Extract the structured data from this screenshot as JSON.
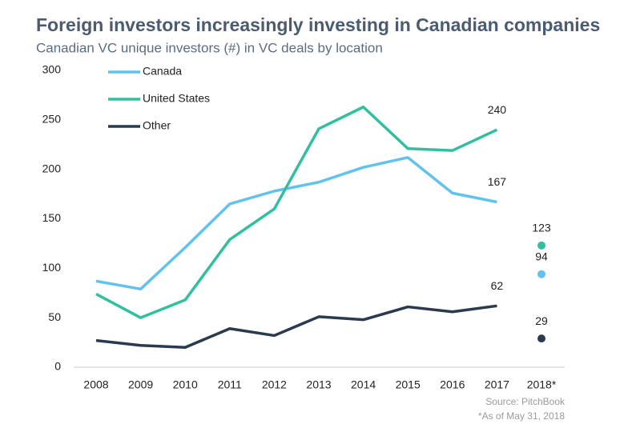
{
  "chart_data": {
    "type": "line",
    "title": "Foreign investors increasingly investing in Canadian companies",
    "subtitle": "Canadian VC unique investors (#) in VC deals by location",
    "categories": [
      "2008",
      "2009",
      "2010",
      "2011",
      "2012",
      "2013",
      "2014",
      "2015",
      "2016",
      "2017",
      "2018*"
    ],
    "series": [
      {
        "name": "Canada",
        "color": "#62c2ee",
        "values": [
          87,
          79,
          121,
          165,
          178,
          187,
          202,
          212,
          176,
          167,
          94
        ]
      },
      {
        "name": "United States",
        "color": "#31bfa0",
        "values": [
          74,
          50,
          68,
          129,
          160,
          241,
          263,
          221,
          219,
          240,
          123
        ]
      },
      {
        "name": "Other",
        "color": "#2b3a4e",
        "values": [
          27,
          22,
          20,
          39,
          32,
          51,
          48,
          61,
          56,
          62,
          29
        ]
      }
    ],
    "ylim": [
      0,
      300
    ],
    "yticks": [
      0,
      50,
      100,
      150,
      200,
      250,
      300
    ],
    "grid": false,
    "legend": "top-left",
    "source": "Source: PitchBook",
    "footnote": "*As of May 31, 2018"
  }
}
